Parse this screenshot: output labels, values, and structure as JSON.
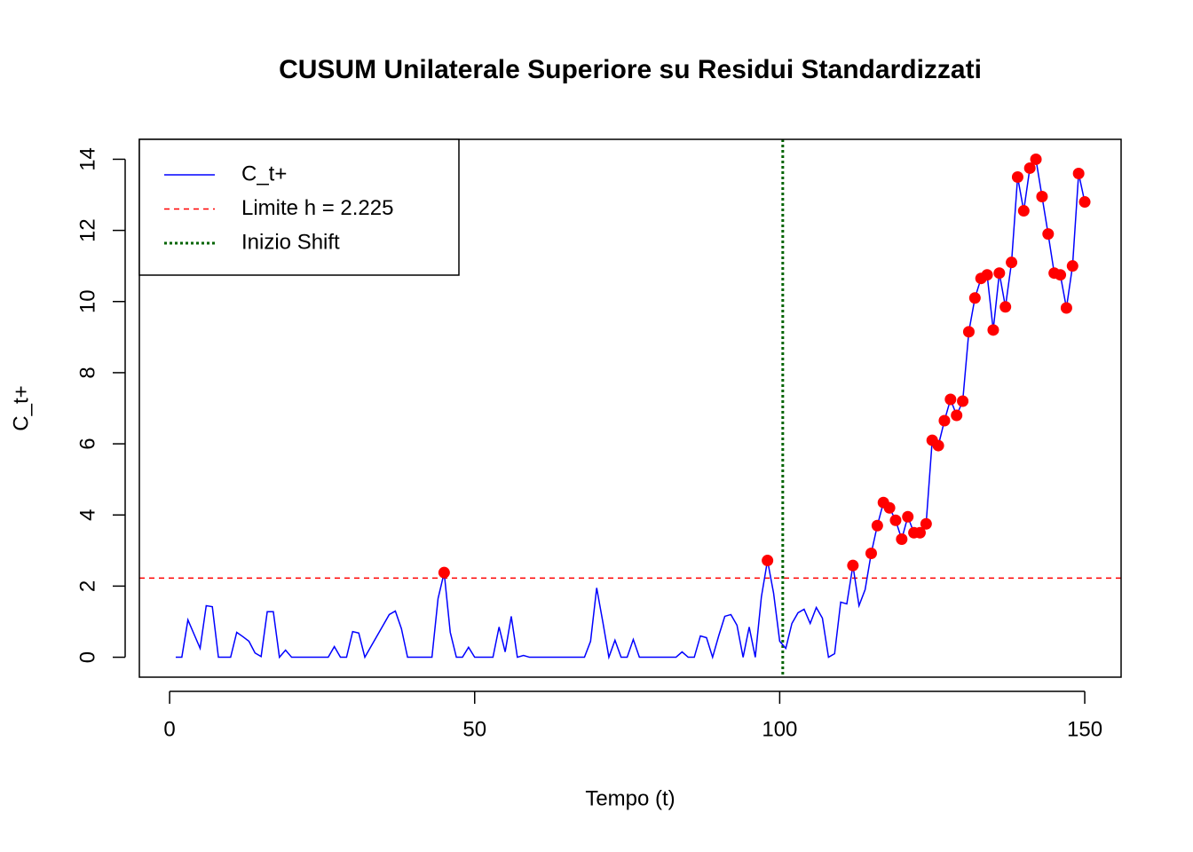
{
  "chart_data": {
    "type": "line",
    "title": "CUSUM Unilaterale Superiore su Residui Standardizzati",
    "xlabel": "Tempo (t)",
    "ylabel": "C_t+",
    "x": [
      1,
      2,
      3,
      4,
      5,
      6,
      7,
      8,
      9,
      10,
      11,
      12,
      13,
      14,
      15,
      16,
      17,
      18,
      19,
      20,
      21,
      22,
      23,
      24,
      25,
      26,
      27,
      28,
      29,
      30,
      31,
      32,
      33,
      34,
      35,
      36,
      37,
      38,
      39,
      40,
      41,
      42,
      43,
      44,
      45,
      46,
      47,
      48,
      49,
      50,
      51,
      52,
      53,
      54,
      55,
      56,
      57,
      58,
      59,
      60,
      61,
      62,
      63,
      64,
      65,
      66,
      67,
      68,
      69,
      70,
      71,
      72,
      73,
      74,
      75,
      76,
      77,
      78,
      79,
      80,
      81,
      82,
      83,
      84,
      85,
      86,
      87,
      88,
      89,
      90,
      91,
      92,
      93,
      94,
      95,
      96,
      97,
      98,
      99,
      100,
      101,
      102,
      103,
      104,
      105,
      106,
      107,
      108,
      109,
      110,
      111,
      112,
      113,
      114,
      115,
      116,
      117,
      118,
      119,
      120,
      121,
      122,
      123,
      124,
      125,
      126,
      127,
      128,
      129,
      130,
      131,
      132,
      133,
      134,
      135,
      136,
      137,
      138,
      139,
      140,
      141,
      142,
      143,
      144,
      145,
      146,
      147,
      148,
      149,
      150
    ],
    "series": [
      {
        "name": "C_t+",
        "color": "#0000ff",
        "point_color": "#ff0000",
        "values": [
          0,
          0,
          1.05,
          0.65,
          0.25,
          1.45,
          1.42,
          0,
          0,
          0,
          0.7,
          0.58,
          0.45,
          0.12,
          0.02,
          1.28,
          1.28,
          0,
          0.2,
          0,
          0,
          0,
          0,
          0,
          0,
          0,
          0.3,
          0,
          0,
          0.72,
          0.68,
          0,
          0.3,
          0.6,
          0.9,
          1.2,
          1.3,
          0.8,
          0,
          0,
          0,
          0,
          0,
          1.65,
          2.38,
          0.7,
          0,
          0,
          0.28,
          0,
          0,
          0,
          0,
          0.85,
          0.15,
          1.15,
          0,
          0.05,
          0,
          0,
          0,
          0,
          0,
          0,
          0,
          0,
          0,
          0,
          0.45,
          1.95,
          1.0,
          0,
          0.48,
          0,
          0,
          0.5,
          0,
          0,
          0,
          0,
          0,
          0,
          0,
          0.15,
          0,
          0,
          0.6,
          0.55,
          0,
          0.6,
          1.15,
          1.2,
          0.9,
          0,
          0.85,
          0,
          1.7,
          2.72,
          1.8,
          0.45,
          0.25,
          0.95,
          1.25,
          1.35,
          0.95,
          1.4,
          1.1,
          0,
          0.1,
          1.55,
          1.5,
          2.58,
          1.45,
          1.9,
          2.92,
          3.7,
          4.35,
          4.2,
          3.85,
          3.32,
          3.95,
          3.5,
          3.5,
          3.75,
          6.1,
          5.95,
          6.65,
          7.25,
          6.8,
          7.2,
          9.15,
          10.1,
          10.65,
          10.75,
          9.2,
          10.8,
          9.85,
          11.1,
          13.5,
          12.55,
          13.75,
          14.0,
          12.95,
          11.9,
          10.8,
          10.75,
          9.82,
          11.0,
          13.6,
          12.8
        ]
      }
    ],
    "hline": {
      "name": "Limite h = 2.225",
      "value": 2.225,
      "color": "#ff0000"
    },
    "vline": {
      "name": "Inizio Shift",
      "value": 100.5,
      "color": "#006400"
    },
    "xlim": [
      -4.96,
      155.96
    ],
    "ylim": [
      -0.56,
      14.56
    ],
    "xticks": [
      0,
      50,
      100,
      150
    ],
    "yticks": [
      0,
      2,
      4,
      6,
      8,
      10,
      12,
      14
    ],
    "legend": "top-left"
  }
}
